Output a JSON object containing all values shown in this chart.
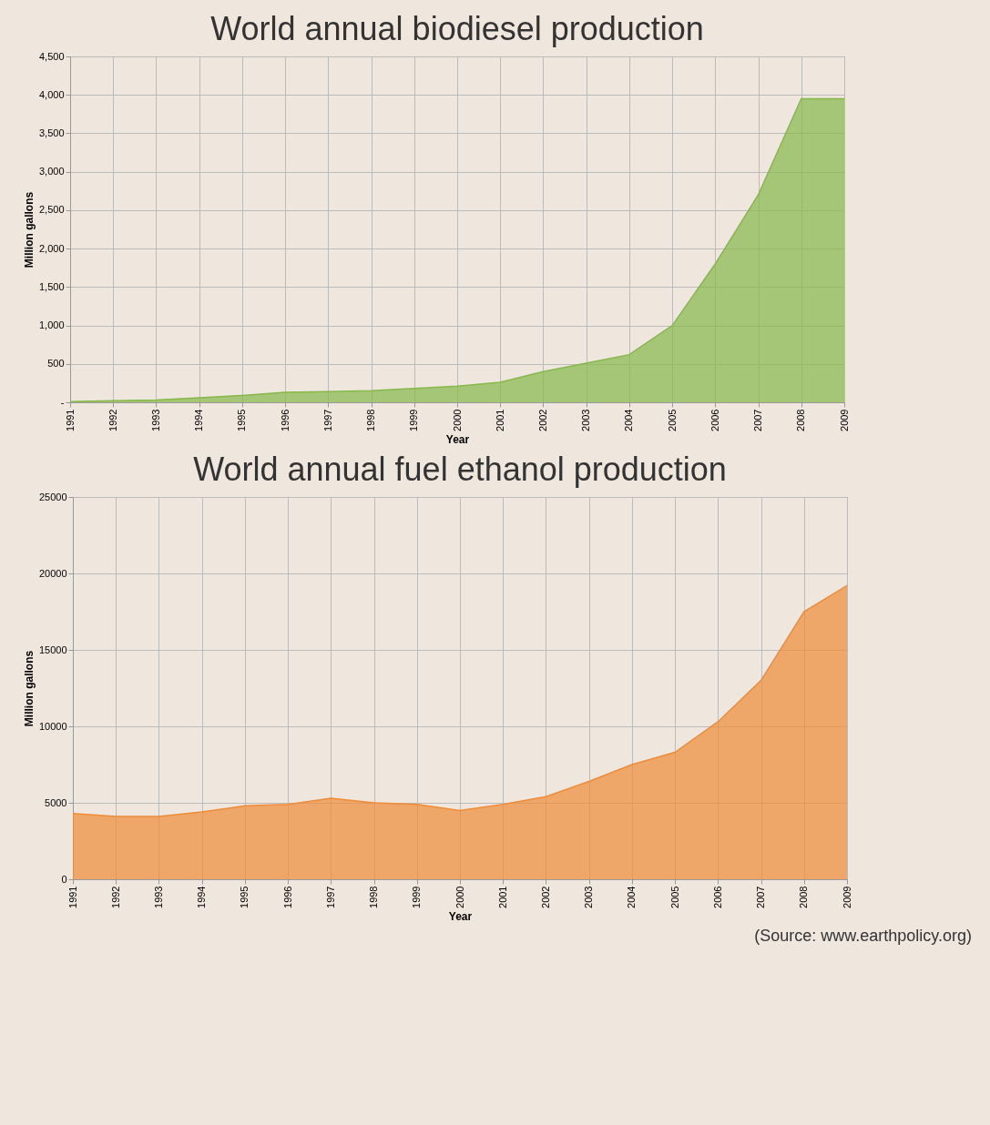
{
  "chart_data": [
    {
      "type": "area",
      "title": "World annual biodiesel production",
      "xlabel": "Year",
      "ylabel": "Million gallons",
      "categories": [
        "1991",
        "1992",
        "1993",
        "1994",
        "1995",
        "1996",
        "1997",
        "1998",
        "1999",
        "2000",
        "2001",
        "2002",
        "2003",
        "2004",
        "2005",
        "2006",
        "2007",
        "2008",
        "2009"
      ],
      "series": [
        {
          "color": "#86b84a",
          "values": [
            10,
            20,
            30,
            60,
            90,
            130,
            140,
            150,
            180,
            210,
            260,
            400,
            510,
            620,
            1000,
            1800,
            2700,
            3950,
            3950
          ]
        }
      ],
      "ylim": [
        0,
        4500
      ],
      "yticks": [
        {
          "value": 0,
          "label": "-"
        },
        500,
        {
          "value": 1000,
          "label": "1,000"
        },
        {
          "value": 1500,
          "label": "1,500"
        },
        {
          "value": 2000,
          "label": "2,000"
        },
        {
          "value": 2500,
          "label": "2,500"
        },
        {
          "value": 3000,
          "label": "3,000"
        },
        {
          "value": 3500,
          "label": "3,500"
        },
        {
          "value": 4000,
          "label": "4,000"
        },
        {
          "value": 4500,
          "label": "4,500"
        }
      ],
      "grid": true
    },
    {
      "type": "area",
      "title": "World annual fuel ethanol production",
      "xlabel": "Year",
      "ylabel": "Million gallons",
      "categories": [
        "1991",
        "1992",
        "1993",
        "1994",
        "1995",
        "1996",
        "1997",
        "1998",
        "1999",
        "2000",
        "2001",
        "2002",
        "2003",
        "2004",
        "2005",
        "2006",
        "2007",
        "2008",
        "2009"
      ],
      "series": [
        {
          "color": "#ee8c38",
          "values": [
            4300,
            4100,
            4100,
            4400,
            4800,
            4900,
            5300,
            5000,
            4900,
            4500,
            4900,
            5400,
            6400,
            7500,
            8300,
            10300,
            13000,
            17500,
            19200
          ]
        }
      ],
      "ylim": [
        0,
        25000
      ],
      "yticks": [
        0,
        5000,
        10000,
        15000,
        20000,
        25000
      ],
      "grid": true,
      "annotations": [
        "(Source: www.earthpolicy.org)"
      ]
    }
  ]
}
